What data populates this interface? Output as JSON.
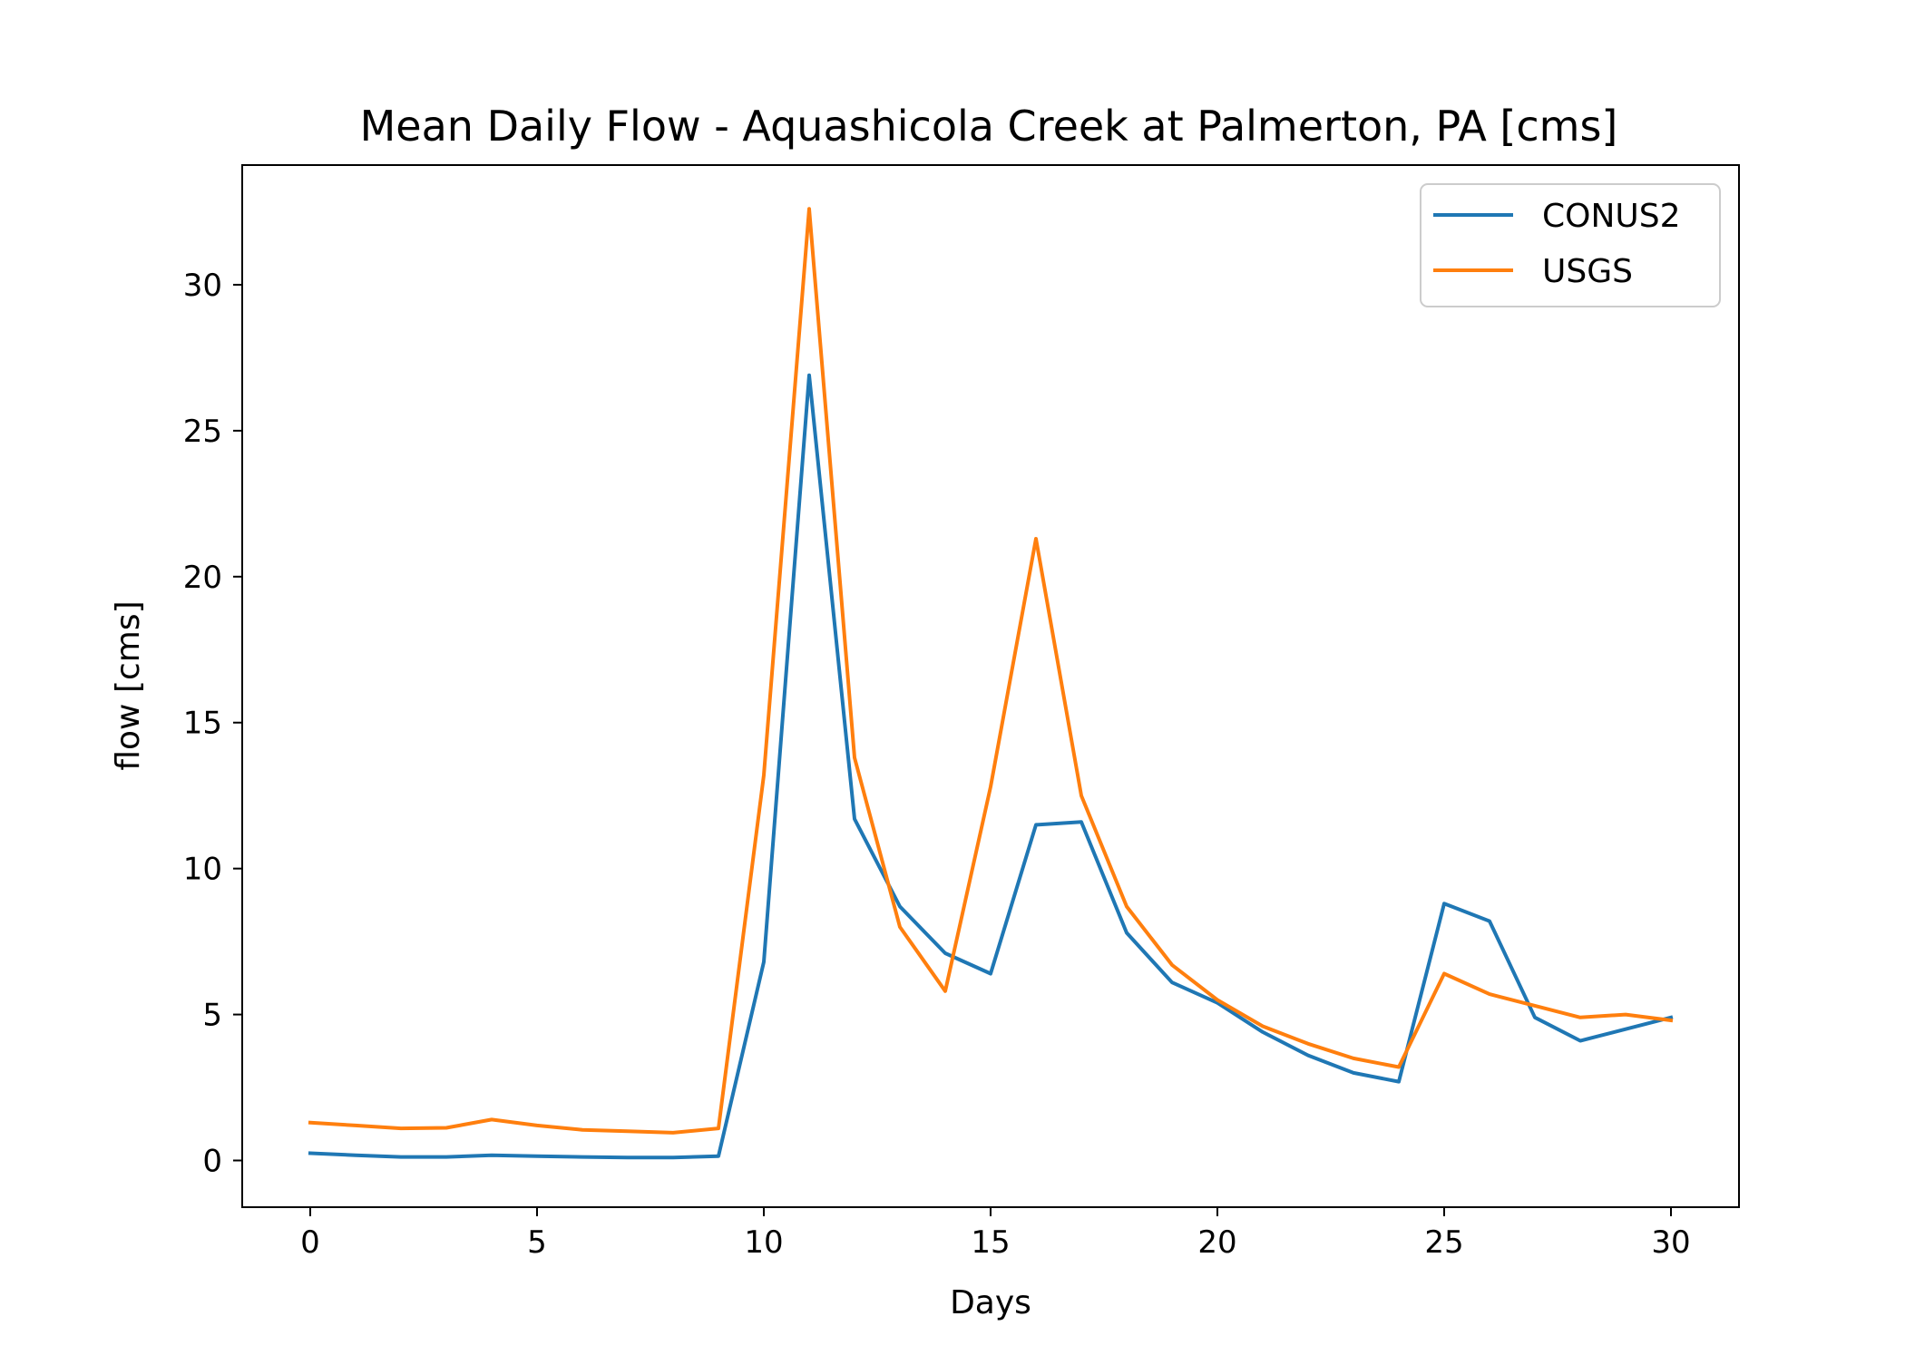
{
  "chart_data": {
    "type": "line",
    "title": "Mean Daily Flow - Aquashicola Creek at Palmerton, PA [cms]",
    "xlabel": "Days",
    "ylabel": "flow [cms]",
    "xlim": [
      -1.5,
      31.5
    ],
    "ylim": [
      -1.6,
      34.1
    ],
    "xticks": [
      0,
      5,
      10,
      15,
      20,
      25,
      30
    ],
    "yticks": [
      0,
      5,
      10,
      15,
      20,
      25,
      30
    ],
    "grid": false,
    "legend_position": "top-right",
    "x": [
      0,
      1,
      2,
      3,
      4,
      5,
      6,
      7,
      8,
      9,
      10,
      11,
      12,
      13,
      14,
      15,
      16,
      17,
      18,
      19,
      20,
      21,
      22,
      23,
      24,
      25,
      26,
      27,
      28,
      29,
      30
    ],
    "series": [
      {
        "name": "CONUS2",
        "color": "#1f77b4",
        "values": [
          0.25,
          0.18,
          0.12,
          0.12,
          0.18,
          0.15,
          0.12,
          0.1,
          0.1,
          0.15,
          6.8,
          26.9,
          11.7,
          8.7,
          7.1,
          6.4,
          11.5,
          11.6,
          7.8,
          6.1,
          5.4,
          4.4,
          3.6,
          3.0,
          2.7,
          8.8,
          8.2,
          4.9,
          4.1,
          4.5,
          4.9
        ]
      },
      {
        "name": "USGS",
        "color": "#ff7f0e",
        "values": [
          1.3,
          1.2,
          1.1,
          1.12,
          1.4,
          1.2,
          1.05,
          1.0,
          0.95,
          1.1,
          13.2,
          32.6,
          13.8,
          8.0,
          5.8,
          12.8,
          21.3,
          12.5,
          8.7,
          6.7,
          5.5,
          4.6,
          4.0,
          3.5,
          3.2,
          6.4,
          5.7,
          5.3,
          4.9,
          5.0,
          4.8
        ]
      }
    ]
  }
}
